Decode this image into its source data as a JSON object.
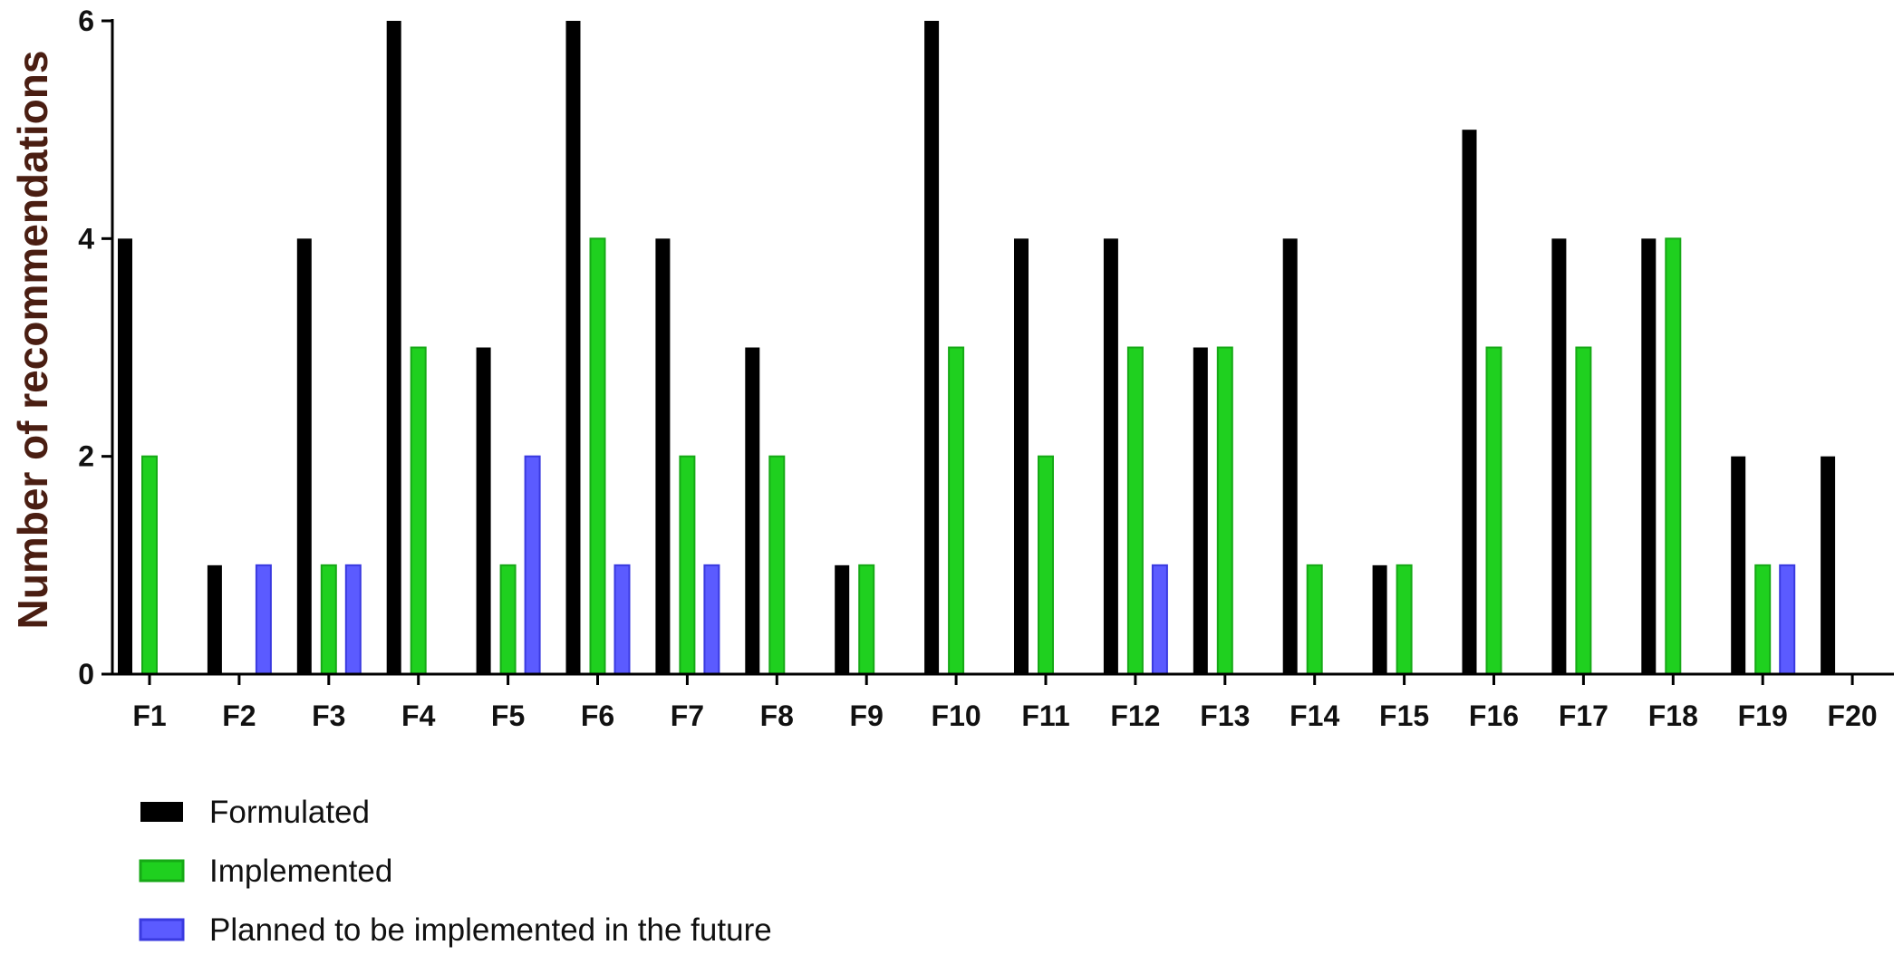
{
  "chart_data": {
    "type": "bar",
    "title": "",
    "xlabel": "",
    "ylabel": "Number of recommendations",
    "ylim": [
      0,
      6
    ],
    "yticks": [
      0,
      2,
      4,
      6
    ],
    "grid": false,
    "legend_position": "bottom-left",
    "categories": [
      "F1",
      "F2",
      "F3",
      "F4",
      "F5",
      "F6",
      "F7",
      "F8",
      "F9",
      "F10",
      "F11",
      "F12",
      "F13",
      "F14",
      "F15",
      "F16",
      "F17",
      "F18",
      "F19",
      "F20"
    ],
    "series": [
      {
        "name": "Formulated",
        "color": "#000000",
        "values": [
          4,
          1,
          4,
          6,
          3,
          6,
          4,
          3,
          1,
          6,
          4,
          4,
          3,
          4,
          1,
          5,
          4,
          4,
          2,
          2
        ]
      },
      {
        "name": "Implemented",
        "color": "#1fd01f",
        "values": [
          2,
          0,
          1,
          3,
          1,
          4,
          2,
          2,
          1,
          3,
          2,
          3,
          3,
          1,
          1,
          3,
          3,
          4,
          1,
          0
        ]
      },
      {
        "name": "Planned to be implemented in the future",
        "color": "#5b5bff",
        "values": [
          0,
          1,
          1,
          0,
          2,
          1,
          1,
          0,
          0,
          0,
          0,
          1,
          0,
          0,
          0,
          0,
          0,
          0,
          1,
          0
        ]
      }
    ]
  }
}
